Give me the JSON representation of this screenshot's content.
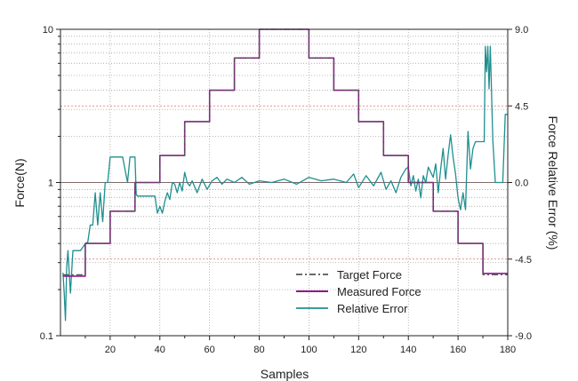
{
  "chart_data": {
    "type": "line",
    "xlabel": "Samples",
    "ylabel_left": "Force(N)",
    "ylabel_right": "Force Relative Error (%)",
    "x_range": [
      0,
      180
    ],
    "y_left_scale": "log",
    "y_left_range": [
      0.1,
      10
    ],
    "y_right_range": [
      -9.0,
      9.0
    ],
    "x_ticks": [
      "20",
      "40",
      "60",
      "80",
      "100",
      "120",
      "140",
      "160",
      "180"
    ],
    "y_left_ticks": [
      "0.1",
      "1",
      "10"
    ],
    "y_right_ticks": [
      "9.0",
      "4.5",
      "0.0",
      "-4.5",
      "-9.0"
    ],
    "grid": true,
    "legend_position": "bottom-center",
    "colors": {
      "target": "#555555",
      "measured": "#8b1a8b",
      "error": "#1f8f8f",
      "ref_red": "#e07070",
      "grid": "#999999"
    },
    "series": [
      {
        "name": "Target Force",
        "axis": "left",
        "style": "dash-dot",
        "x": [
          1,
          10,
          10,
          20,
          20,
          30,
          30,
          40,
          40,
          50,
          50,
          60,
          60,
          70,
          70,
          80,
          80,
          100,
          100,
          110,
          110,
          120,
          120,
          130,
          130,
          140,
          140,
          150,
          150,
          160,
          160,
          170,
          170,
          180
        ],
        "y": [
          0.25,
          0.25,
          0.4,
          0.4,
          0.65,
          0.65,
          1.0,
          1.0,
          1.5,
          1.5,
          2.5,
          2.5,
          4.0,
          4.0,
          6.5,
          6.5,
          10.0,
          10.0,
          6.5,
          6.5,
          4.0,
          4.0,
          2.5,
          2.5,
          1.5,
          1.5,
          1.0,
          1.0,
          0.65,
          0.65,
          0.4,
          0.4,
          0.25,
          0.25
        ]
      },
      {
        "name": "Measured Force",
        "axis": "left",
        "style": "solid",
        "x": [
          1,
          10,
          10,
          20,
          20,
          30,
          30,
          40,
          40,
          50,
          50,
          60,
          60,
          70,
          70,
          80,
          80,
          100,
          100,
          110,
          110,
          120,
          120,
          130,
          130,
          140,
          140,
          150,
          150,
          160,
          160,
          170,
          170,
          180
        ],
        "y": [
          0.245,
          0.245,
          0.4,
          0.4,
          0.65,
          0.65,
          1.0,
          1.0,
          1.5,
          1.5,
          2.5,
          2.5,
          4.0,
          4.0,
          6.5,
          6.5,
          10.0,
          10.0,
          6.5,
          6.5,
          4.0,
          4.0,
          2.5,
          2.5,
          1.5,
          1.5,
          1.0,
          1.0,
          0.65,
          0.65,
          0.4,
          0.4,
          0.255,
          0.255
        ]
      },
      {
        "name": "Relative Error",
        "axis": "right",
        "style": "solid",
        "x": [
          1,
          1.5,
          2,
          2.5,
          3,
          4,
          5,
          6,
          8,
          10,
          11,
          12,
          13,
          14,
          15,
          16,
          17,
          18,
          19,
          20,
          21,
          23,
          25,
          27,
          28,
          29,
          30,
          30.5,
          31,
          33,
          35,
          36,
          37,
          38,
          39,
          40,
          41,
          42,
          43,
          44,
          45,
          46,
          47,
          48,
          49,
          50,
          51,
          52,
          53,
          55,
          57,
          59,
          61,
          63,
          65,
          67,
          70,
          73,
          76,
          80,
          85,
          90,
          95,
          100,
          105,
          110,
          115,
          118,
          120,
          123,
          126,
          129,
          131,
          133,
          135,
          137,
          139,
          140,
          141,
          142,
          143,
          144,
          145,
          146,
          147,
          148,
          150,
          151,
          152,
          153,
          154,
          155,
          156,
          157,
          158,
          159,
          160,
          161,
          162,
          163,
          164,
          165,
          166,
          167,
          168,
          169,
          170,
          170.5,
          171,
          171.5,
          172,
          172.5,
          173,
          174,
          175,
          176,
          177,
          178,
          179,
          180
        ],
        "y": [
          -5.3,
          -6.5,
          -8.1,
          -5.0,
          -4.0,
          -6.5,
          -4.0,
          -4.0,
          -4.0,
          -3.6,
          -3.5,
          -2.5,
          -2.5,
          -0.6,
          -2.5,
          -0.6,
          -2.3,
          0.0,
          0.0,
          1.5,
          1.5,
          1.5,
          1.5,
          0.0,
          1.5,
          1.5,
          1.5,
          -0.7,
          -0.8,
          -0.8,
          -0.8,
          -0.8,
          -0.8,
          -0.8,
          -1.8,
          -1.4,
          -1.8,
          -1.1,
          -0.6,
          -1.0,
          0.0,
          -0.1,
          -0.6,
          0.0,
          -0.5,
          0.6,
          0.0,
          -0.2,
          0.1,
          -0.6,
          0.2,
          -0.4,
          0.1,
          0.3,
          -0.1,
          0.2,
          0.0,
          0.3,
          -0.1,
          0.1,
          0.0,
          0.2,
          -0.1,
          0.3,
          0.1,
          0.2,
          0.0,
          0.5,
          -0.3,
          0.4,
          -0.2,
          0.6,
          -0.4,
          0.1,
          -0.6,
          0.3,
          0.8,
          0.9,
          -0.2,
          0.4,
          -0.5,
          0.2,
          -0.9,
          0.4,
          0.0,
          0.9,
          0.3,
          1.1,
          -0.6,
          0.8,
          2.0,
          0.2,
          1.6,
          2.8,
          1.5,
          0.5,
          -0.9,
          -1.6,
          -0.6,
          -1.6,
          3.0,
          0.8,
          2.0,
          2.4,
          2.4,
          2.4,
          2.4,
          2.4,
          8.0,
          6.5,
          8.0,
          5.5,
          8.0,
          2.5,
          0.0,
          0.0,
          0.0,
          0.0,
          4.0,
          4.0
        ]
      }
    ],
    "legend": [
      "Target Force",
      "Measured Force",
      "Relative Error"
    ]
  }
}
